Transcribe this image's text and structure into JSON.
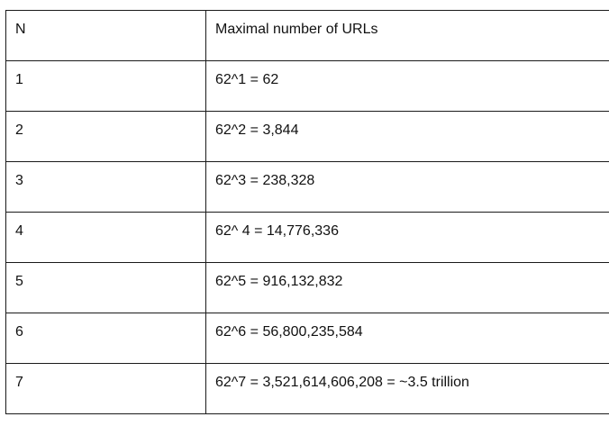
{
  "table": {
    "headers": [
      "N",
      "Maximal number of URLs"
    ],
    "rows": [
      [
        "1",
        "62^1 = 62"
      ],
      [
        "2",
        "62^2 = 3,844"
      ],
      [
        "3",
        "62^3 = 238,328"
      ],
      [
        "4",
        "62^ 4 = 14,776,336"
      ],
      [
        "5",
        "62^5 = 916,132,832"
      ],
      [
        "6",
        "62^6 = 56,800,235,584"
      ],
      [
        "7",
        "62^7 = 3,521,614,606,208 = ~3.5 trillion"
      ]
    ]
  }
}
